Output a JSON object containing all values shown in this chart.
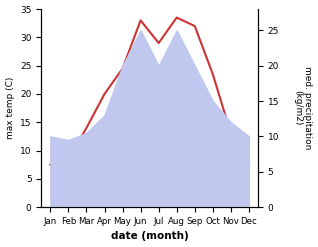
{
  "months": [
    "Jan",
    "Feb",
    "Mar",
    "Apr",
    "May",
    "Jun",
    "Jul",
    "Aug",
    "Sep",
    "Oct",
    "Nov",
    "Dec"
  ],
  "month_indices": [
    0,
    1,
    2,
    3,
    4,
    5,
    6,
    7,
    8,
    9,
    10,
    11
  ],
  "temperature": [
    7.5,
    8.5,
    14.0,
    20.0,
    24.5,
    33.0,
    29.0,
    33.5,
    32.0,
    23.5,
    13.0,
    7.5
  ],
  "precipitation": [
    10.0,
    9.5,
    10.5,
    13.0,
    20.0,
    25.0,
    20.0,
    25.0,
    20.0,
    15.0,
    12.0,
    10.0
  ],
  "temp_color": "#cc3333",
  "precip_fill_color": "#c0c8f0",
  "ylim_temp": [
    0,
    35
  ],
  "ylim_precip": [
    0,
    28
  ],
  "yticks_temp": [
    0,
    5,
    10,
    15,
    20,
    25,
    30,
    35
  ],
  "yticks_precip": [
    0,
    5,
    10,
    15,
    20,
    25
  ],
  "xlabel": "date (month)",
  "ylabel_left": "max temp (C)",
  "ylabel_right": "med. precipitation\n(kg/m2)",
  "figsize": [
    3.18,
    2.47
  ],
  "dpi": 100
}
